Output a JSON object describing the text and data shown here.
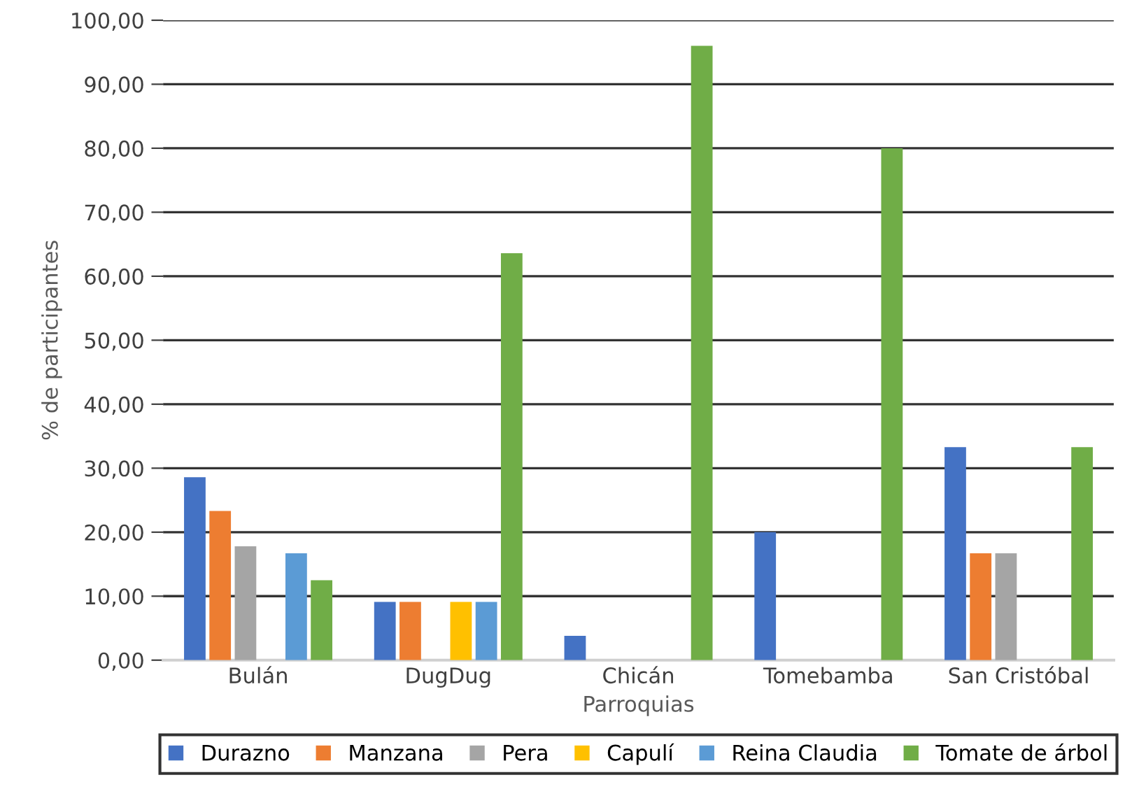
{
  "chart_data": {
    "type": "bar",
    "xlabel": "Parroquias",
    "ylabel": "% de participantes",
    "categories": [
      "Bulán",
      "DugDug",
      "Chicán",
      "Tomebamba",
      "San Cristóbal"
    ],
    "series": [
      {
        "name": "Durazno",
        "color": "#4472c4",
        "values": [
          28.6,
          9.1,
          3.8,
          20.0,
          33.3
        ]
      },
      {
        "name": "Manzana",
        "color": "#ed7d31",
        "values": [
          23.3,
          9.1,
          0,
          0,
          16.7
        ]
      },
      {
        "name": "Pera",
        "color": "#a5a5a5",
        "values": [
          17.8,
          0,
          0,
          0,
          16.7
        ]
      },
      {
        "name": "Capulí",
        "color": "#ffc000",
        "values": [
          0,
          9.1,
          0,
          0,
          0
        ]
      },
      {
        "name": "Reina Claudia",
        "color": "#5b9bd5",
        "values": [
          16.7,
          9.1,
          0,
          0,
          0
        ]
      },
      {
        "name": "Tomate de árbol",
        "color": "#70ad47",
        "values": [
          12.5,
          63.6,
          96.0,
          80.0,
          33.3
        ]
      }
    ],
    "ylim": [
      0,
      100
    ],
    "yticks": [
      {
        "value": 0,
        "label": "0,00"
      },
      {
        "value": 10,
        "label": "10,00"
      },
      {
        "value": 20,
        "label": "20,00"
      },
      {
        "value": 30,
        "label": "30,00"
      },
      {
        "value": 40,
        "label": "40,00"
      },
      {
        "value": 50,
        "label": "50,00"
      },
      {
        "value": 60,
        "label": "60,00"
      },
      {
        "value": 70,
        "label": "70,00"
      },
      {
        "value": 80,
        "label": "80,00"
      },
      {
        "value": 90,
        "label": "90,00"
      },
      {
        "value": 100,
        "label": "100,00"
      }
    ],
    "grid": "y",
    "legend": "bottom"
  }
}
